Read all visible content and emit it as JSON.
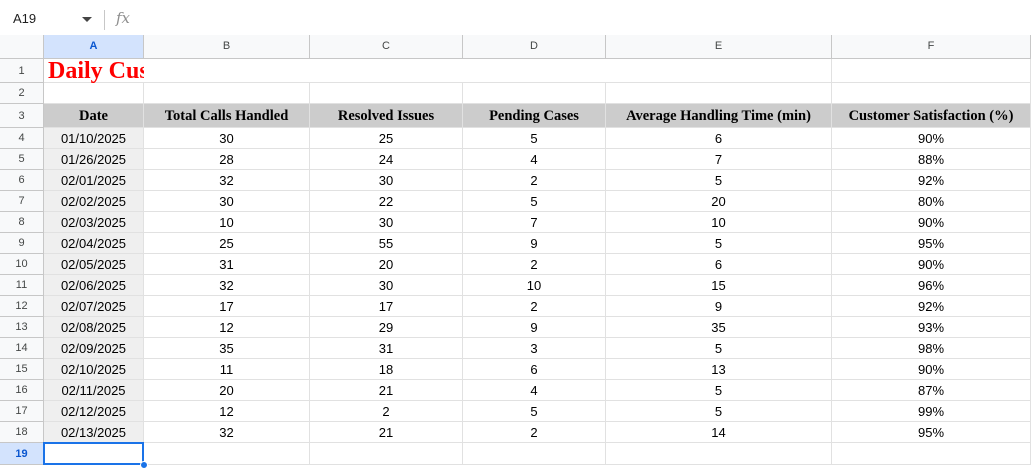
{
  "formula_bar": {
    "name_box": "A19",
    "fx_icon": "fx-icon",
    "formula": ""
  },
  "columns": [
    "A",
    "B",
    "C",
    "D",
    "E",
    "F"
  ],
  "rows": [
    "1",
    "2",
    "3",
    "4",
    "5",
    "6",
    "7",
    "8",
    "9",
    "10",
    "11",
    "12",
    "13",
    "14",
    "15",
    "16",
    "17",
    "18",
    "19"
  ],
  "selected_cell": "A19",
  "title": "Daily Customer Service Performance Report",
  "headers": [
    "Date",
    "Total Calls Handled",
    "Resolved Issues",
    "Pending Cases",
    "Average Handling Time (min)",
    "Customer Satisfaction (%)"
  ],
  "data": [
    [
      "01/10/2025",
      "30",
      "25",
      "5",
      "6",
      "90%"
    ],
    [
      "01/26/2025",
      "28",
      "24",
      "4",
      "7",
      "88%"
    ],
    [
      "02/01/2025",
      "32",
      "30",
      "2",
      "5",
      "92%"
    ],
    [
      "02/02/2025",
      "30",
      "22",
      "5",
      "20",
      "80%"
    ],
    [
      "02/03/2025",
      "10",
      "30",
      "7",
      "10",
      "90%"
    ],
    [
      "02/04/2025",
      "25",
      "55",
      "9",
      "5",
      "95%"
    ],
    [
      "02/05/2025",
      "31",
      "20",
      "2",
      "6",
      "90%"
    ],
    [
      "02/06/2025",
      "32",
      "30",
      "10",
      "15",
      "96%"
    ],
    [
      "02/07/2025",
      "17",
      "17",
      "2",
      "9",
      "92%"
    ],
    [
      "02/08/2025",
      "12",
      "29",
      "9",
      "35",
      "93%"
    ],
    [
      "02/09/2025",
      "35",
      "31",
      "3",
      "5",
      "98%"
    ],
    [
      "02/10/2025",
      "11",
      "18",
      "6",
      "13",
      "90%"
    ],
    [
      "02/11/2025",
      "20",
      "21",
      "4",
      "5",
      "87%"
    ],
    [
      "02/12/2025",
      "12",
      "2",
      "5",
      "5",
      "99%"
    ],
    [
      "02/13/2025",
      "32",
      "21",
      "2",
      "14",
      "95%"
    ]
  ],
  "colors": {
    "title": "#ff0000",
    "header_fill": "#cccccc",
    "date_fill": "#efefef",
    "selection": "#1a73e8"
  }
}
